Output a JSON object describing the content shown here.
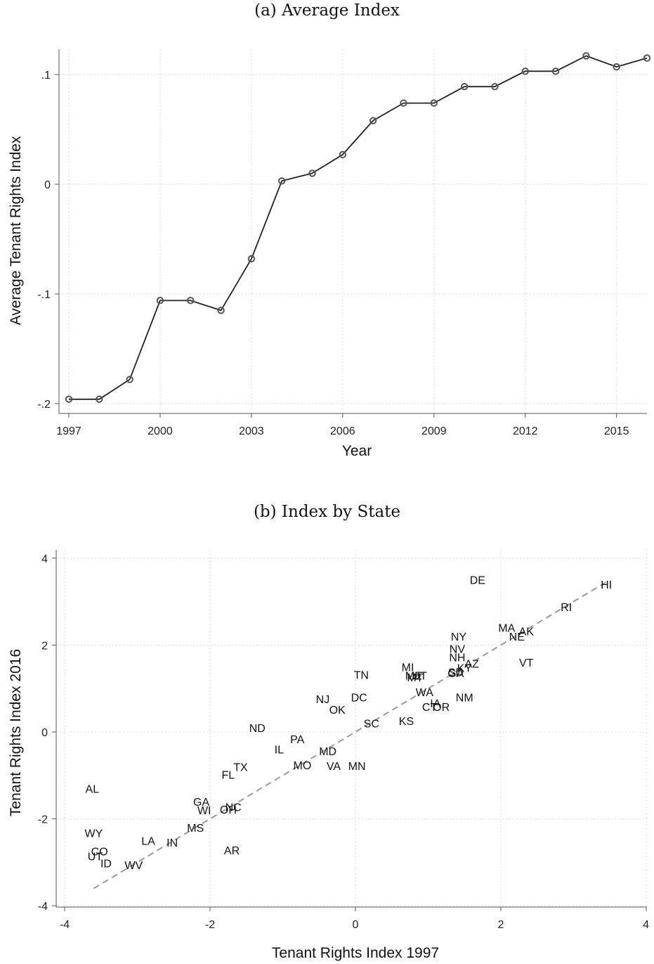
{
  "chart_data": [
    {
      "type": "line",
      "title": "(a) Average Index",
      "xlabel": "Year",
      "ylabel": "Average Tenant Rights Index",
      "xlim": [
        1997,
        2016
      ],
      "ylim": [
        -0.2,
        0.125
      ],
      "xticks": [
        1997,
        2000,
        2003,
        2006,
        2009,
        2012,
        2015
      ],
      "xtick_labels": [
        "1997",
        "2000",
        "2003",
        "2006",
        "2009",
        "2012",
        "2015"
      ],
      "yticks": [
        -0.2,
        -0.1,
        0,
        0.1
      ],
      "ytick_labels": [
        "-.2",
        "-.1",
        "0",
        ".1"
      ],
      "grid": true,
      "x": [
        1997,
        1998,
        1999,
        2000,
        2001,
        2002,
        2003,
        2004,
        2005,
        2006,
        2007,
        2008,
        2009,
        2010,
        2011,
        2012,
        2013,
        2014,
        2015,
        2016
      ],
      "values": [
        -0.196,
        -0.196,
        -0.178,
        -0.106,
        -0.106,
        -0.115,
        -0.068,
        0.003,
        0.01,
        0.027,
        0.058,
        0.074,
        0.074,
        0.089,
        0.089,
        0.103,
        0.103,
        0.117,
        0.107,
        0.115
      ],
      "line_color": "#222222",
      "marker_color": "#555555"
    },
    {
      "type": "scatter",
      "title": "(b) Index by State",
      "xlabel": "Tenant Rights Index 1997",
      "ylabel": "Tenant Rights Index 2016",
      "xlim": [
        -4,
        4
      ],
      "ylim": [
        -4,
        4
      ],
      "xticks": [
        -4,
        -2,
        0,
        2,
        4
      ],
      "xtick_labels": [
        "-4",
        "-2",
        "0",
        "2",
        "4"
      ],
      "yticks": [
        -4,
        -2,
        0,
        2,
        4
      ],
      "ytick_labels": [
        "-4",
        "-2",
        "0",
        "2",
        "4"
      ],
      "grid": true,
      "fit_line": {
        "x": [
          -3.6,
          3.45
        ],
        "y": [
          -3.6,
          3.45
        ],
        "style": "dashed",
        "color": "#999999"
      },
      "points": [
        {
          "label": "DE",
          "x": 1.68,
          "y": 3.5
        },
        {
          "label": "HI",
          "x": 3.45,
          "y": 3.4
        },
        {
          "label": "RI",
          "x": 2.9,
          "y": 2.88
        },
        {
          "label": "MA",
          "x": 2.08,
          "y": 2.4
        },
        {
          "label": "AK",
          "x": 2.35,
          "y": 2.32
        },
        {
          "label": "NE",
          "x": 2.22,
          "y": 2.2
        },
        {
          "label": "NY",
          "x": 1.42,
          "y": 2.2
        },
        {
          "label": "NV",
          "x": 1.4,
          "y": 1.92
        },
        {
          "label": "NH",
          "x": 1.4,
          "y": 1.72
        },
        {
          "label": "VT",
          "x": 2.35,
          "y": 1.6
        },
        {
          "label": "AZ",
          "x": 1.6,
          "y": 1.58
        },
        {
          "label": "KY",
          "x": 1.5,
          "y": 1.48
        },
        {
          "label": "SD",
          "x": 1.38,
          "y": 1.38
        },
        {
          "label": "GA",
          "x": 1.38,
          "y": 1.36
        },
        {
          "label": "MI",
          "x": 0.72,
          "y": 1.5
        },
        {
          "label": "ME",
          "x": 0.8,
          "y": 1.3
        },
        {
          "label": "MT",
          "x": 0.82,
          "y": 1.26
        },
        {
          "label": "UT",
          "x": 0.88,
          "y": 1.3
        },
        {
          "label": "TN",
          "x": 0.08,
          "y": 1.32
        },
        {
          "label": "NM",
          "x": 1.5,
          "y": 0.8
        },
        {
          "label": "WA",
          "x": 0.95,
          "y": 0.92
        },
        {
          "label": "DC",
          "x": 0.05,
          "y": 0.8
        },
        {
          "label": "NJ",
          "x": -0.45,
          "y": 0.76
        },
        {
          "label": "OK",
          "x": -0.25,
          "y": 0.52
        },
        {
          "label": "IA",
          "x": 1.1,
          "y": 0.66
        },
        {
          "label": "CT",
          "x": 1.02,
          "y": 0.58
        },
        {
          "label": "OR",
          "x": 1.18,
          "y": 0.58
        },
        {
          "label": "KS",
          "x": 0.7,
          "y": 0.26
        },
        {
          "label": "SC",
          "x": 0.22,
          "y": 0.2
        },
        {
          "label": "ND",
          "x": -1.35,
          "y": 0.1
        },
        {
          "label": "PA",
          "x": -0.8,
          "y": -0.16
        },
        {
          "label": "IL",
          "x": -1.05,
          "y": -0.4
        },
        {
          "label": "MD",
          "x": -0.38,
          "y": -0.44
        },
        {
          "label": "MO",
          "x": -0.73,
          "y": -0.76
        },
        {
          "label": "VA",
          "x": -0.3,
          "y": -0.78
        },
        {
          "label": "MN",
          "x": 0.02,
          "y": -0.78
        },
        {
          "label": "TX",
          "x": -1.58,
          "y": -0.8
        },
        {
          "label": "FL",
          "x": -1.75,
          "y": -0.98
        },
        {
          "label": "AL",
          "x": -3.62,
          "y": -1.3
        },
        {
          "label": "GA",
          "x": -2.12,
          "y": -1.6
        },
        {
          "label": "NC",
          "x": -1.68,
          "y": -1.72
        },
        {
          "label": "WI",
          "x": -2.08,
          "y": -1.8
        },
        {
          "label": "OH",
          "x": -1.75,
          "y": -1.78
        },
        {
          "label": "MS",
          "x": -2.2,
          "y": -2.2
        },
        {
          "label": "WY",
          "x": -3.6,
          "y": -2.32
        },
        {
          "label": "LA",
          "x": -2.85,
          "y": -2.5
        },
        {
          "label": "IN",
          "x": -2.52,
          "y": -2.54
        },
        {
          "label": "AR",
          "x": -1.7,
          "y": -2.72
        },
        {
          "label": "CO",
          "x": -3.52,
          "y": -2.74
        },
        {
          "label": "UT",
          "x": -3.58,
          "y": -2.86
        },
        {
          "label": "ID",
          "x": -3.43,
          "y": -3.02
        },
        {
          "label": "WV",
          "x": -3.05,
          "y": -3.06
        }
      ]
    }
  ]
}
